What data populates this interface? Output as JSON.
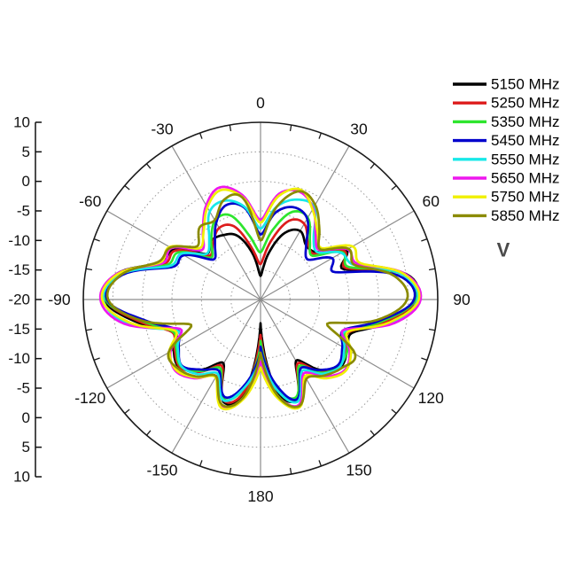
{
  "figure": {
    "background": "#ffffff",
    "kind": "antenna radiation pattern, polar plot"
  },
  "annotation": {
    "text": "V",
    "color": "#4a4a4a"
  },
  "chart_data": {
    "type": "line",
    "subtype": "polar-radiation-pattern",
    "title": "",
    "angle_convention": "0 at top, clockwise positive, degrees",
    "angle_ticks_deg": [
      0,
      30,
      60,
      90,
      120,
      150,
      180,
      -150,
      -120,
      -90,
      -60,
      -30
    ],
    "radial_ticks": [
      10,
      5,
      0,
      -5,
      -10,
      -15,
      -20,
      -15,
      -10,
      -5,
      0,
      5,
      10
    ],
    "radial_range": [
      -20,
      10
    ],
    "grid": "solid gray spokes every 30 deg, dotted rings every 5 units, minor ticks every 10 deg on outer circle",
    "legend_position": "top-right",
    "series": [
      {
        "name": "5150 MHz",
        "color": "#000000",
        "points": [
          [
            -180,
            -16
          ],
          [
            -170,
            -4
          ],
          [
            -160,
            -1.6
          ],
          [
            -150,
            -7.5
          ],
          [
            -140,
            -4.5
          ],
          [
            -130,
            -2.1
          ],
          [
            -120,
            -3
          ],
          [
            -110,
            -4.5
          ],
          [
            -100,
            1.5
          ],
          [
            -90,
            6.5
          ],
          [
            -80,
            4.8
          ],
          [
            -70,
            -2
          ],
          [
            -60,
            -3
          ],
          [
            -50,
            -8
          ],
          [
            -40,
            -7
          ],
          [
            -30,
            -7.4
          ],
          [
            -20,
            -8.5
          ],
          [
            -10,
            -12
          ],
          [
            0,
            -16
          ],
          [
            10,
            -12
          ],
          [
            20,
            -8
          ],
          [
            30,
            -6.6
          ],
          [
            40,
            -8
          ],
          [
            50,
            -7.5
          ],
          [
            60,
            -3.2
          ],
          [
            70,
            -5
          ],
          [
            80,
            5
          ],
          [
            90,
            6.5
          ],
          [
            100,
            2
          ],
          [
            110,
            -3.5
          ],
          [
            120,
            -3
          ],
          [
            130,
            -2.3
          ],
          [
            140,
            -4.5
          ],
          [
            150,
            -8
          ],
          [
            160,
            -2
          ],
          [
            170,
            -4.5
          ],
          [
            180,
            -16
          ]
        ]
      },
      {
        "name": "5250 MHz",
        "color": "#dd1c1c",
        "points": [
          [
            -180,
            -14
          ],
          [
            -170,
            -4.2
          ],
          [
            -160,
            -1.8
          ],
          [
            -150,
            -7
          ],
          [
            -140,
            -4
          ],
          [
            -130,
            -2.2
          ],
          [
            -120,
            -3.2
          ],
          [
            -110,
            -4
          ],
          [
            -100,
            1
          ],
          [
            -90,
            6.2
          ],
          [
            -80,
            4.5
          ],
          [
            -70,
            -2.5
          ],
          [
            -60,
            -3.4
          ],
          [
            -50,
            -8.5
          ],
          [
            -40,
            -7.5
          ],
          [
            -30,
            -6
          ],
          [
            -20,
            -6.8
          ],
          [
            -10,
            -11
          ],
          [
            0,
            -14
          ],
          [
            10,
            -10
          ],
          [
            20,
            -5.8
          ],
          [
            30,
            -5.2
          ],
          [
            40,
            -7.5
          ],
          [
            50,
            -8
          ],
          [
            60,
            -3.6
          ],
          [
            70,
            -4.5
          ],
          [
            80,
            4.6
          ],
          [
            90,
            6.3
          ],
          [
            100,
            1.5
          ],
          [
            110,
            -4
          ],
          [
            120,
            -3.4
          ],
          [
            130,
            -2.5
          ],
          [
            140,
            -4
          ],
          [
            150,
            -7.5
          ],
          [
            160,
            -2.2
          ],
          [
            170,
            -4.8
          ],
          [
            180,
            -14
          ]
        ]
      },
      {
        "name": "5350 MHz",
        "color": "#2ee52e",
        "points": [
          [
            -180,
            -12
          ],
          [
            -170,
            -5
          ],
          [
            -160,
            -2
          ],
          [
            -150,
            -6.5
          ],
          [
            -140,
            -4.2
          ],
          [
            -130,
            -2.4
          ],
          [
            -120,
            -3.5
          ],
          [
            -110,
            -4.2
          ],
          [
            -100,
            0.5
          ],
          [
            -90,
            6.2
          ],
          [
            -80,
            4.2
          ],
          [
            -70,
            -3
          ],
          [
            -60,
            -4
          ],
          [
            -50,
            -9
          ],
          [
            -40,
            -7
          ],
          [
            -30,
            -4.6
          ],
          [
            -20,
            -4.8
          ],
          [
            -10,
            -9
          ],
          [
            0,
            -12
          ],
          [
            10,
            -8
          ],
          [
            20,
            -4.2
          ],
          [
            30,
            -4
          ],
          [
            40,
            -7
          ],
          [
            50,
            -8.5
          ],
          [
            60,
            -4
          ],
          [
            70,
            -4
          ],
          [
            80,
            4.4
          ],
          [
            90,
            6.2
          ],
          [
            100,
            1
          ],
          [
            110,
            -4.5
          ],
          [
            120,
            -3
          ],
          [
            130,
            -2.6
          ],
          [
            140,
            -3.8
          ],
          [
            150,
            -7
          ],
          [
            160,
            -2.4
          ],
          [
            170,
            -5
          ],
          [
            180,
            -13
          ]
        ]
      },
      {
        "name": "5450 MHz",
        "color": "#0000cc",
        "points": [
          [
            -180,
            -11
          ],
          [
            -170,
            -5.5
          ],
          [
            -160,
            -2.4
          ],
          [
            -150,
            -6
          ],
          [
            -140,
            -4.5
          ],
          [
            -130,
            -2.6
          ],
          [
            -120,
            -4
          ],
          [
            -110,
            -5
          ],
          [
            -100,
            0
          ],
          [
            -90,
            6
          ],
          [
            -80,
            3.8
          ],
          [
            -70,
            -4
          ],
          [
            -60,
            -5
          ],
          [
            -50,
            -9.5
          ],
          [
            -40,
            -8
          ],
          [
            -30,
            -5
          ],
          [
            -20,
            -3
          ],
          [
            -10,
            -4.2
          ],
          [
            0,
            -9
          ],
          [
            10,
            -5
          ],
          [
            20,
            -3.4
          ],
          [
            30,
            -4.2
          ],
          [
            40,
            -8
          ],
          [
            50,
            -9.5
          ],
          [
            60,
            -6
          ],
          [
            70,
            -6.5
          ],
          [
            80,
            3.6
          ],
          [
            90,
            6
          ],
          [
            100,
            0.5
          ],
          [
            110,
            -5
          ],
          [
            120,
            -4
          ],
          [
            130,
            -2.8
          ],
          [
            140,
            -4.4
          ],
          [
            150,
            -6.5
          ],
          [
            160,
            -2
          ],
          [
            170,
            -5.5
          ],
          [
            180,
            -12
          ]
        ]
      },
      {
        "name": "5550 MHz",
        "color": "#17e8e8",
        "points": [
          [
            -180,
            -10
          ],
          [
            -170,
            -5
          ],
          [
            -160,
            -1.8
          ],
          [
            -150,
            -5.5
          ],
          [
            -140,
            -3.5
          ],
          [
            -130,
            -2.5
          ],
          [
            -120,
            -3.8
          ],
          [
            -110,
            -4.8
          ],
          [
            -100,
            3
          ],
          [
            -90,
            6.6
          ],
          [
            -80,
            4.2
          ],
          [
            -70,
            -3.5
          ],
          [
            -60,
            -4.5
          ],
          [
            -50,
            -8
          ],
          [
            -40,
            -6.5
          ],
          [
            -30,
            -2.8
          ],
          [
            -20,
            -2.2
          ],
          [
            -10,
            -4
          ],
          [
            0,
            -8
          ],
          [
            10,
            -4
          ],
          [
            20,
            -2
          ],
          [
            30,
            -1.9
          ],
          [
            40,
            -6
          ],
          [
            50,
            -7.5
          ],
          [
            60,
            -4.2
          ],
          [
            70,
            -3
          ],
          [
            80,
            4.4
          ],
          [
            90,
            6.6
          ],
          [
            100,
            2.5
          ],
          [
            110,
            -4.6
          ],
          [
            120,
            -3.6
          ],
          [
            130,
            -2.4
          ],
          [
            140,
            -3.6
          ],
          [
            150,
            -6
          ],
          [
            160,
            -1.6
          ],
          [
            170,
            -4.6
          ],
          [
            180,
            -11
          ]
        ]
      },
      {
        "name": "5650 MHz",
        "color": "#ee17ee",
        "points": [
          [
            -180,
            -9
          ],
          [
            -170,
            -3
          ],
          [
            -160,
            -0.8
          ],
          [
            -150,
            -5
          ],
          [
            -140,
            -2.6
          ],
          [
            -130,
            -1.2
          ],
          [
            -120,
            -2.4
          ],
          [
            -110,
            -5.5
          ],
          [
            -100,
            3.5
          ],
          [
            -90,
            7.1
          ],
          [
            -80,
            4.8
          ],
          [
            -70,
            -2.2
          ],
          [
            -60,
            -2.6
          ],
          [
            -50,
            -7
          ],
          [
            -40,
            -4.8
          ],
          [
            -30,
            -1.6
          ],
          [
            -20,
            0.2
          ],
          [
            -10,
            -2
          ],
          [
            0,
            -6.5
          ],
          [
            10,
            -1.8
          ],
          [
            20,
            -0.6
          ],
          [
            30,
            -2.2
          ],
          [
            40,
            -5.5
          ],
          [
            50,
            -7
          ],
          [
            60,
            -3
          ],
          [
            70,
            -2.4
          ],
          [
            80,
            4.9
          ],
          [
            90,
            7.1
          ],
          [
            100,
            3
          ],
          [
            110,
            -5
          ],
          [
            120,
            -2.6
          ],
          [
            130,
            -1.4
          ],
          [
            140,
            -3
          ],
          [
            150,
            -5.5
          ],
          [
            160,
            -1
          ],
          [
            170,
            -3.4
          ],
          [
            180,
            -9.5
          ]
        ]
      },
      {
        "name": "5750 MHz",
        "color": "#f0f000",
        "points": [
          [
            -180,
            -8.5
          ],
          [
            -170,
            -2.8
          ],
          [
            -160,
            -0.5
          ],
          [
            -150,
            -4.8
          ],
          [
            -140,
            -2.8
          ],
          [
            -130,
            -1.4
          ],
          [
            -120,
            -2.2
          ],
          [
            -110,
            -4.6
          ],
          [
            -100,
            2.5
          ],
          [
            -90,
            6.8
          ],
          [
            -80,
            4.6
          ],
          [
            -70,
            -1.8
          ],
          [
            -60,
            -2.2
          ],
          [
            -50,
            -6.5
          ],
          [
            -40,
            -5
          ],
          [
            -30,
            -2
          ],
          [
            -20,
            -0.3
          ],
          [
            -10,
            -2.4
          ],
          [
            0,
            -7
          ],
          [
            10,
            -2.2
          ],
          [
            20,
            -0.2
          ],
          [
            30,
            -2.4
          ],
          [
            40,
            -5
          ],
          [
            50,
            -6.5
          ],
          [
            60,
            -2
          ],
          [
            70,
            -2
          ],
          [
            80,
            4.7
          ],
          [
            90,
            6.8
          ],
          [
            100,
            2.2
          ],
          [
            110,
            -4.2
          ],
          [
            120,
            -2.3
          ],
          [
            130,
            -1.2
          ],
          [
            140,
            -2.6
          ],
          [
            150,
            -5
          ],
          [
            160,
            -0.6
          ],
          [
            170,
            -3
          ],
          [
            180,
            -8.5
          ]
        ]
      },
      {
        "name": "5850 MHz",
        "color": "#8b8b00",
        "points": [
          [
            -180,
            -11
          ],
          [
            -170,
            -3.2
          ],
          [
            -160,
            -1
          ],
          [
            -150,
            -5
          ],
          [
            -140,
            -3
          ],
          [
            -130,
            -1.8
          ],
          [
            -120,
            -2
          ],
          [
            -110,
            -7.5
          ],
          [
            -100,
            0.5
          ],
          [
            -90,
            5.8
          ],
          [
            -80,
            4
          ],
          [
            -70,
            -1.5
          ],
          [
            -60,
            -2.4
          ],
          [
            -50,
            -6
          ],
          [
            -40,
            -4
          ],
          [
            -30,
            -4.5
          ],
          [
            -20,
            -2
          ],
          [
            -10,
            -2.5
          ],
          [
            0,
            -10
          ],
          [
            10,
            -4
          ],
          [
            20,
            -0.5
          ],
          [
            30,
            -1.5
          ],
          [
            40,
            -4.5
          ],
          [
            50,
            -6.8
          ],
          [
            60,
            -2.8
          ],
          [
            70,
            -3
          ],
          [
            80,
            3
          ],
          [
            90,
            4.8
          ],
          [
            100,
            0
          ],
          [
            110,
            -8
          ],
          [
            120,
            -1.5
          ],
          [
            130,
            -2
          ],
          [
            140,
            -3.2
          ],
          [
            150,
            -4.5
          ],
          [
            160,
            -0.8
          ],
          [
            170,
            -3.5
          ],
          [
            180,
            -11
          ]
        ]
      }
    ],
    "style": {
      "spoke_color": "#8c8c8c",
      "ring_color": "#999999",
      "outer_circle_color": "#1a1a1a",
      "tick_label_color": "#111111",
      "line_width": 2.7
    }
  }
}
